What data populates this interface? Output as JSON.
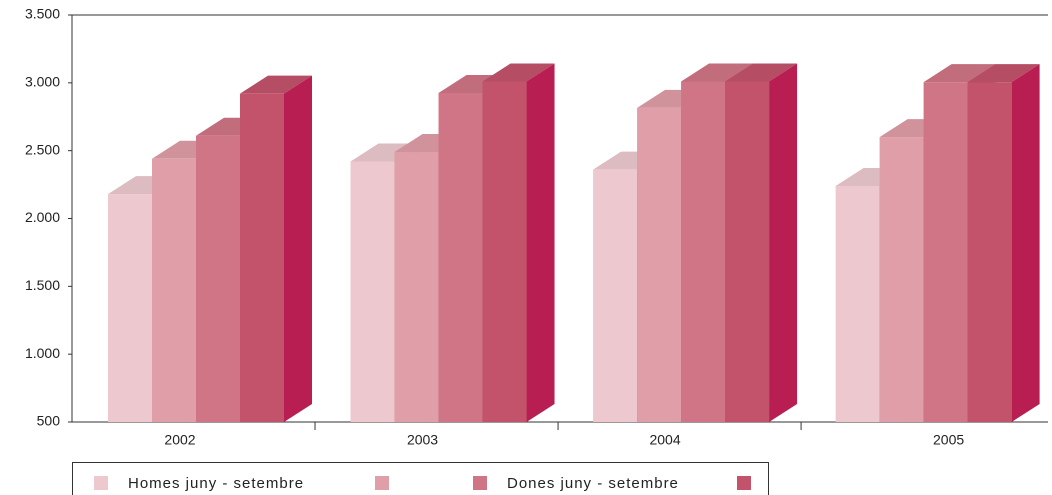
{
  "chart_data": {
    "type": "bar3d",
    "categories": [
      "2002",
      "2003",
      "2004",
      "2005"
    ],
    "series": [
      {
        "name": "Homes juny - setembre",
        "color": "#edc9cf",
        "values": [
          2180,
          2420,
          2360,
          2240
        ]
      },
      {
        "color": "#e09ea8",
        "values": [
          2440,
          2490,
          2815,
          2600
        ]
      },
      {
        "name": "Dones juny - setembre",
        "color": "#cf7585",
        "values": [
          2610,
          2925,
          3010,
          3005
        ]
      },
      {
        "color": "#c3536b",
        "values": [
          2920,
          3010,
          3010,
          3005
        ]
      }
    ],
    "ylim": [
      500,
      3500
    ],
    "yticks": [
      {
        "value": 500,
        "label": "500"
      },
      {
        "value": 1000,
        "label": "1.000"
      },
      {
        "value": 1500,
        "label": "1.500"
      },
      {
        "value": 2000,
        "label": "2.000"
      },
      {
        "value": 2500,
        "label": "2.500"
      },
      {
        "value": 3000,
        "label": "3.000"
      },
      {
        "value": 3500,
        "label": "3.500"
      }
    ],
    "grid": false,
    "legend": "bottom"
  }
}
